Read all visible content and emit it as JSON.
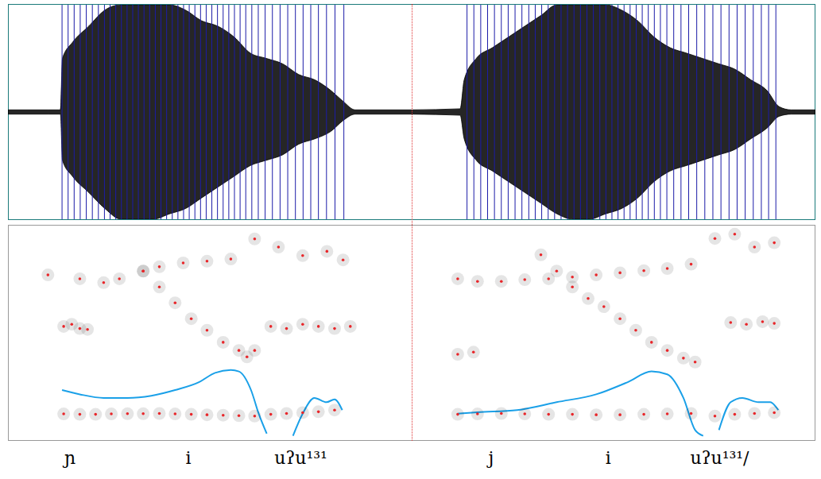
{
  "chart_data": [
    {
      "type": "waveform",
      "xlim": [
        0,
        100
      ],
      "ylim": [
        -1,
        1
      ],
      "tick_labels": false,
      "series": [
        {
          "type": "area",
          "color": "#000000",
          "x": [
            0,
            10,
            13,
            13.5,
            16,
            20,
            24,
            28,
            32,
            36,
            40,
            44,
            48,
            52,
            56,
            60,
            64,
            68,
            72,
            76,
            80,
            83,
            86,
            100
          ],
          "upper": [
            0.02,
            0.02,
            0.02,
            0.5,
            0.65,
            0.8,
            0.95,
            1,
            1,
            1,
            1,
            0.95,
            0.85,
            0.8,
            0.7,
            0.55,
            0.5,
            0.45,
            0.35,
            0.3,
            0.2,
            0.1,
            0.02,
            0.02
          ],
          "lower": [
            -0.02,
            -0.02,
            -0.02,
            -0.45,
            -0.6,
            -0.75,
            -0.9,
            -1,
            -1,
            -1,
            -0.95,
            -0.9,
            -0.8,
            -0.7,
            -0.6,
            -0.5,
            -0.45,
            -0.4,
            -0.3,
            -0.25,
            -0.18,
            -0.08,
            -0.02,
            -0.02
          ]
        },
        {
          "type": "pulses",
          "color": "#1c1ca8",
          "x": [
            13.4,
            14.9,
            16.4,
            17.9,
            19.4,
            20.9,
            22.4,
            23.9,
            25.3,
            26.7,
            28.1,
            29.5,
            30.9,
            32.3,
            33.7,
            35.1,
            36.5,
            37.9,
            39.3,
            40.7,
            42.1,
            43.5,
            44.9,
            46.3,
            47.7,
            49.1,
            50.5,
            51.9,
            53.3,
            54.7,
            56.1,
            57.5,
            58.9,
            60.4,
            62.0,
            63.7,
            65.5,
            67.4,
            69.3,
            71.2,
            73.1,
            75.0,
            76.9,
            78.9,
            81.0,
            83.2
          ]
        }
      ]
    },
    {
      "type": "spectrogram",
      "xlim": [
        0,
        100
      ],
      "ylim": [
        0,
        5000
      ],
      "y2lim": [
        50,
        350
      ],
      "tick_labels": false,
      "annotations": [
        "ɲ",
        "i",
        "uʔu¹³¹"
      ],
      "series": [
        {
          "type": "scatter",
          "marker": "dot",
          "color": "#e8262a",
          "x": [
            13.8,
            17.8,
            21.7,
            25.6,
            29.6,
            33.5,
            37.5,
            41.4,
            45.4,
            49.3,
            53.3,
            57.2,
            61.1,
            65.1,
            69.0,
            73.0,
            76.9,
            80.9
          ],
          "values": [
            610,
            600,
            600,
            610,
            615,
            615,
            620,
            610,
            600,
            590,
            580,
            570,
            560,
            600,
            620,
            640,
            660,
            700
          ]
        },
        {
          "type": "scatter",
          "marker": "dot",
          "color": "#e8262a",
          "x": [
            13.8,
            15.8,
            17.8,
            19.7,
            33.5,
            37.5,
            41.4,
            45.4,
            49.3,
            53.3,
            57.2,
            59.2,
            61.1,
            65.1,
            69.0,
            73.0,
            76.9,
            80.9,
            84.8
          ],
          "values": [
            2650,
            2700,
            2600,
            2580,
            3940,
            3570,
            3200,
            2830,
            2560,
            2280,
            2090,
            1940,
            2090,
            2650,
            2600,
            2700,
            2650,
            2600,
            2650
          ]
        },
        {
          "type": "scatter",
          "marker": "dot",
          "color": "#e8262a",
          "x": [
            9.9,
            17.8,
            23.7,
            27.6,
            33.5,
            37.5,
            43.4,
            49.3,
            55.2,
            61.1
          ],
          "values": [
            3850,
            3760,
            3670,
            3760,
            3940,
            4040,
            4130,
            4170,
            4220,
            4690
          ]
        },
        {
          "type": "scatter",
          "marker": "dot",
          "color": "#e8262a",
          "x": [
            67.0,
            73.0,
            79.0,
            83.0
          ],
          "values": [
            4500,
            4300,
            4400,
            4200
          ]
        },
        {
          "type": "line",
          "axis": "y2",
          "color": "#1aa0e8",
          "x": [
            13.4,
            17.8,
            23.7,
            29.6,
            35.5,
            41.4,
            47.3,
            51.3,
            55.2,
            57.2,
            60.2,
            62.1,
            64.1,
            67.0,
            70.6,
            73.0,
            75.9,
            78.9,
            80.9,
            82.8
          ],
          "values": [
            120,
            114,
            109,
            109,
            112,
            120,
            131,
            144,
            148,
            146,
            120,
            87,
            59,
            null,
            56,
            87,
            109,
            103,
            107,
            92
          ]
        }
      ]
    },
    {
      "type": "waveform",
      "xlim": [
        0,
        100
      ],
      "ylim": [
        -1,
        1
      ],
      "tick_labels": false,
      "series": [
        {
          "type": "area",
          "color": "#000000",
          "x": [
            0,
            12,
            13,
            16,
            20,
            24,
            28,
            32,
            36,
            40,
            44,
            48,
            52,
            56,
            60,
            64,
            68,
            72,
            76,
            80,
            84,
            88,
            91,
            94,
            100
          ],
          "upper": [
            0.02,
            0.03,
            0.3,
            0.5,
            0.6,
            0.7,
            0.8,
            0.9,
            1,
            1,
            1,
            1,
            0.95,
            0.85,
            0.7,
            0.6,
            0.55,
            0.5,
            0.45,
            0.4,
            0.3,
            0.2,
            0.05,
            0.02,
            0.02
          ],
          "lower": [
            -0.02,
            -0.03,
            -0.25,
            -0.45,
            -0.55,
            -0.65,
            -0.75,
            -0.85,
            -0.95,
            -1,
            -1,
            -0.95,
            -0.9,
            -0.8,
            -0.65,
            -0.55,
            -0.5,
            -0.45,
            -0.4,
            -0.35,
            -0.25,
            -0.15,
            -0.04,
            -0.02,
            -0.02
          ]
        },
        {
          "type": "pulses",
          "color": "#1c1ca8",
          "x": [
            13.7,
            15.4,
            17.1,
            18.8,
            20.5,
            22.2,
            23.9,
            25.6,
            27.3,
            29.0,
            30.6,
            32.2,
            33.8,
            35.4,
            37.0,
            38.6,
            40.2,
            41.8,
            43.4,
            45.0,
            46.6,
            48.1,
            49.6,
            51.1,
            52.6,
            54.1,
            55.6,
            57.1,
            58.6,
            60.1,
            61.6,
            63.2,
            64.9,
            66.7,
            68.6,
            70.6,
            72.6,
            74.6,
            76.6,
            78.6,
            80.6,
            82.6,
            84.6,
            86.6,
            88.4,
            90.2
          ]
        }
      ]
    },
    {
      "type": "spectrogram",
      "xlim": [
        0,
        100
      ],
      "ylim": [
        0,
        5000
      ],
      "y2lim": [
        50,
        350
      ],
      "tick_labels": false,
      "annotations": [
        "j",
        "i",
        "uʔu¹³¹/"
      ],
      "series": [
        {
          "type": "scatter",
          "marker": "dot",
          "color": "#e8262a",
          "x": [
            11.4,
            16.3,
            22.2,
            28.0,
            33.9,
            39.8,
            45.7,
            51.6,
            57.5,
            63.3,
            69.2,
            75.1,
            80.0,
            84.9,
            89.8
          ],
          "values": [
            600,
            610,
            620,
            610,
            600,
            600,
            590,
            590,
            600,
            610,
            620,
            560,
            600,
            620,
            640
          ]
        },
        {
          "type": "scatter",
          "marker": "dot",
          "color": "#e8262a",
          "x": [
            11.4,
            15.3,
            32.0,
            35.9,
            39.8,
            43.7,
            47.6,
            51.6,
            55.5,
            59.4,
            63.3,
            67.3,
            70.2,
            79.0,
            82.9,
            86.9,
            89.8
          ],
          "values": [
            2000,
            2050,
            4320,
            3940,
            3570,
            3300,
            3110,
            2830,
            2560,
            2280,
            2090,
            1910,
            1820,
            2740,
            2700,
            2760,
            2720
          ]
        },
        {
          "type": "scatter",
          "marker": "dot",
          "color": "#e8262a",
          "x": [
            11.4,
            16.3,
            22.2,
            28.0,
            33.9,
            39.8,
            45.7,
            51.6,
            57.5,
            63.3,
            69.2
          ],
          "values": [
            3760,
            3700,
            3700,
            3740,
            3760,
            3800,
            3850,
            3900,
            3950,
            4000,
            4100
          ]
        },
        {
          "type": "scatter",
          "marker": "dot",
          "color": "#e8262a",
          "x": [
            75.1,
            80.0,
            84.9,
            89.8
          ],
          "values": [
            4700,
            4800,
            4500,
            4600
          ]
        },
        {
          "type": "line",
          "axis": "y2",
          "color": "#1aa0e8",
          "x": [
            11.4,
            16.3,
            26.1,
            35.9,
            45.7,
            53.5,
            59.4,
            63.3,
            67.3,
            70.2,
            72.2,
            74.0,
            76.1,
            79.0,
            81.9,
            85.9,
            88.8,
            90.8
          ],
          "values": [
            87,
            89,
            92,
            103,
            114,
            131,
            146,
            142,
            109,
            64,
            56,
            null,
            64,
            103,
            109,
            103,
            103,
            92
          ]
        }
      ]
    }
  ]
}
